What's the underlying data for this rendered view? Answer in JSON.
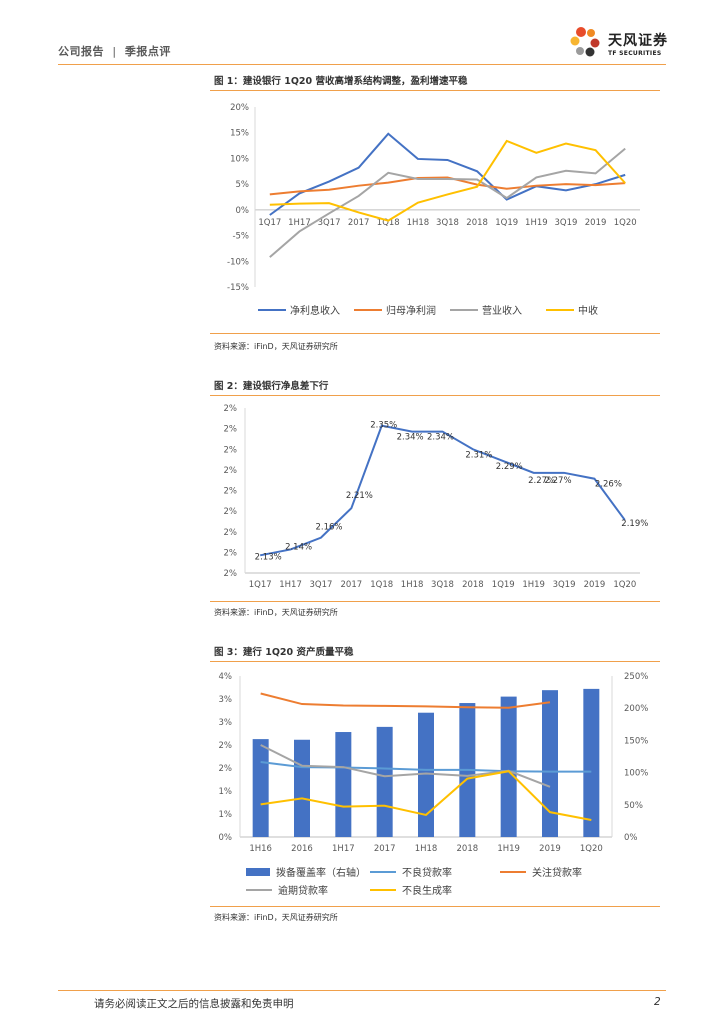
{
  "header": {
    "section": "公司报告",
    "separator": "|",
    "report_type": "季报点评",
    "logo_cn": "天风证券",
    "logo_en": "TF SECURITIES"
  },
  "figures": [
    {
      "title": "图 1：建设银行 1Q20 营收高增系结构调整，盈利增速平稳",
      "source": "资料来源：iFinD，天风证券研究所"
    },
    {
      "title": "图 2：建设银行净息差下行",
      "source": "资料来源：iFinD，天风证券研究所"
    },
    {
      "title": "图 3：建行 1Q20 资产质量平稳",
      "source": "资料来源：iFinD，天风证券研究所"
    }
  ],
  "chart_data": [
    {
      "type": "line",
      "categories": [
        "1Q17",
        "1H17",
        "3Q17",
        "2017",
        "1Q18",
        "1H18",
        "3Q18",
        "2018",
        "1Q19",
        "1H19",
        "3Q19",
        "2019",
        "1Q20"
      ],
      "y_ticks": [
        "20%",
        "15%",
        "10%",
        "5%",
        "0%",
        "-5%",
        "-10%",
        "-15%"
      ],
      "ylim": [
        -15,
        20
      ],
      "series": [
        {
          "name": "净利息收入",
          "color": "#4472c4",
          "values": [
            -1.0,
            3.2,
            5.5,
            8.2,
            14.8,
            9.9,
            9.7,
            7.5,
            2.0,
            4.6,
            3.8,
            5.0,
            6.8
          ]
        },
        {
          "name": "归母净利润",
          "color": "#ed7d31",
          "values": [
            3.0,
            3.6,
            3.9,
            4.7,
            5.3,
            6.2,
            6.3,
            4.9,
            4.1,
            4.7,
            5.0,
            4.8,
            5.2
          ]
        },
        {
          "name": "营业收入",
          "color": "#a5a5a5",
          "values": [
            -9.2,
            -4.2,
            -0.7,
            2.7,
            7.2,
            6.0,
            6.0,
            5.9,
            2.3,
            6.3,
            7.6,
            7.1,
            11.9
          ]
        },
        {
          "name": "中收",
          "color": "#ffc000",
          "values": [
            1.0,
            1.2,
            1.3,
            -0.5,
            -2.1,
            1.4,
            3.0,
            4.5,
            13.4,
            11.1,
            12.9,
            11.6,
            5.2
          ]
        }
      ]
    },
    {
      "type": "line",
      "categories": [
        "1Q17",
        "1H17",
        "3Q17",
        "2017",
        "1Q18",
        "1H18",
        "3Q18",
        "2018",
        "1Q19",
        "1H19",
        "3Q19",
        "2019",
        "1Q20"
      ],
      "y_ticks": [
        "2%",
        "2%",
        "2%",
        "2%",
        "2%",
        "2%",
        "2%",
        "2%",
        "2%"
      ],
      "ylim": [
        2.1,
        2.38
      ],
      "series": [
        {
          "name": "净息差",
          "color": "#4472c4",
          "values": [
            2.13,
            2.14,
            2.16,
            2.21,
            2.35,
            2.34,
            2.34,
            2.31,
            2.29,
            2.27,
            2.27,
            2.26,
            2.19
          ],
          "labels": [
            "2.13%",
            "2.14%",
            "2.16%",
            "2.21%",
            "2.35%",
            "2.34%",
            "2.34%",
            "2.31%",
            "2.29%",
            "2.27%",
            "2.27%",
            "2.26%",
            "2.19%"
          ]
        }
      ]
    },
    {
      "type": "bar+line",
      "categories": [
        "1H16",
        "2016",
        "1H17",
        "2017",
        "1H18",
        "2018",
        "1H19",
        "2019",
        "1Q20"
      ],
      "y_left_ticks": [
        "4%",
        "3%",
        "3%",
        "2%",
        "2%",
        "1%",
        "1%",
        "0%"
      ],
      "y_right_ticks": [
        "250%",
        "200%",
        "150%",
        "100%",
        "50%",
        "0%"
      ],
      "ylim_left": [
        0,
        3.5
      ],
      "ylim_right": [
        0,
        250
      ],
      "bars": {
        "name": "拨备覆盖率（右轴）",
        "color": "#4472c4",
        "values": [
          152,
          151,
          163,
          171,
          193,
          208,
          218,
          228,
          230
        ]
      },
      "series": [
        {
          "name": "不良贷款率",
          "color": "#5b9bd5",
          "values": [
            1.63,
            1.52,
            1.51,
            1.49,
            1.46,
            1.46,
            1.43,
            1.42,
            1.42
          ]
        },
        {
          "name": "关注贷款率",
          "color": "#ed7d31",
          "values": [
            3.12,
            2.89,
            2.86,
            2.85,
            2.84,
            2.82,
            2.81,
            2.93,
            null
          ]
        },
        {
          "name": "逾期贷款率",
          "color": "#a5a5a5",
          "values": [
            2.0,
            1.55,
            1.52,
            1.32,
            1.38,
            1.33,
            1.44,
            1.09,
            null
          ]
        },
        {
          "name": "不良生成率",
          "color": "#ffc000",
          "values": [
            0.71,
            0.84,
            0.66,
            0.68,
            0.48,
            1.27,
            1.43,
            0.54,
            0.37
          ]
        }
      ]
    }
  ],
  "footer": {
    "disclaimer": "请务必阅读正文之后的信息披露和免责申明",
    "page": "2"
  }
}
